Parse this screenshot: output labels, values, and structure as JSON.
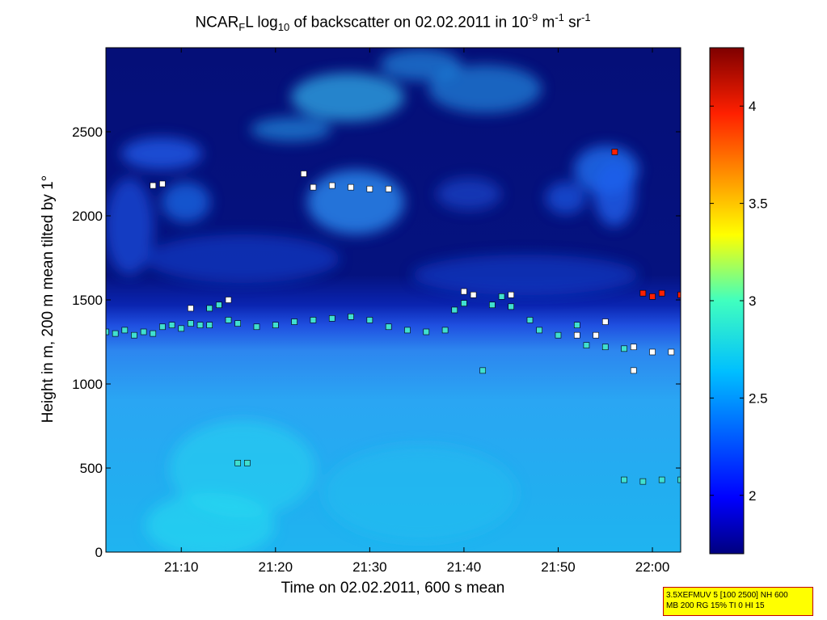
{
  "chart_data": {
    "type": "heatmap",
    "title": {
      "prefix": "NCAR",
      "sub1": "F",
      "mid1": "L log",
      "sub2": "10",
      "mid2": " of backscatter on 02.02.2011 in 10",
      "sup1": "-9",
      "mid3": " m",
      "sup2": "-1",
      "mid4": " sr",
      "sup3": "-1"
    },
    "xlabel": "Time on 02.02.2011, 600 s mean",
    "ylabel": "Height in m, 200 m mean tilted by 1°",
    "xlim": [
      "21:02",
      "22:03"
    ],
    "ylim": [
      0,
      3000
    ],
    "x_ticks": [
      "21:10",
      "21:20",
      "21:30",
      "21:40",
      "21:50",
      "22:00"
    ],
    "y_ticks": [
      0,
      500,
      1000,
      1500,
      2000,
      2500
    ],
    "colorbar": {
      "range": [
        1.7,
        4.3
      ],
      "ticks": [
        2,
        2.5,
        3,
        3.5,
        4
      ],
      "tick_labels": [
        "2",
        "2.5",
        "3",
        "3.5",
        "4"
      ],
      "colormap": "jet"
    },
    "boundary_layer_band_m": [
      0,
      1300
    ],
    "series": [
      {
        "marker": "cyan-square",
        "color": "#40e0d0",
        "points": [
          [
            "21:02",
            1310
          ],
          [
            "21:03",
            1300
          ],
          [
            "21:04",
            1320
          ],
          [
            "21:05",
            1290
          ],
          [
            "21:06",
            1310
          ],
          [
            "21:07",
            1300
          ],
          [
            "21:08",
            1340
          ],
          [
            "21:09",
            1350
          ],
          [
            "21:10",
            1330
          ],
          [
            "21:11",
            1360
          ],
          [
            "21:12",
            1350
          ],
          [
            "21:13",
            1350
          ],
          [
            "21:13",
            1450
          ],
          [
            "21:14",
            1470
          ],
          [
            "21:15",
            1380
          ],
          [
            "21:16",
            1360
          ],
          [
            "21:16",
            530
          ],
          [
            "21:17",
            530
          ],
          [
            "21:18",
            1340
          ],
          [
            "21:20",
            1350
          ],
          [
            "21:22",
            1370
          ],
          [
            "21:24",
            1380
          ],
          [
            "21:26",
            1390
          ],
          [
            "21:28",
            1400
          ],
          [
            "21:30",
            1380
          ],
          [
            "21:32",
            1340
          ],
          [
            "21:34",
            1320
          ],
          [
            "21:36",
            1310
          ],
          [
            "21:38",
            1320
          ],
          [
            "21:39",
            1440
          ],
          [
            "21:40",
            1480
          ],
          [
            "21:42",
            1080
          ],
          [
            "21:43",
            1470
          ],
          [
            "21:44",
            1520
          ],
          [
            "21:45",
            1460
          ],
          [
            "21:47",
            1380
          ],
          [
            "21:48",
            1320
          ],
          [
            "21:50",
            1290
          ],
          [
            "21:52",
            1350
          ],
          [
            "21:53",
            1230
          ],
          [
            "21:55",
            1220
          ],
          [
            "21:57",
            1210
          ],
          [
            "21:57",
            430
          ],
          [
            "21:59",
            420
          ],
          [
            "22:01",
            430
          ],
          [
            "22:03",
            430
          ]
        ]
      },
      {
        "marker": "white-square",
        "color": "#ffffff",
        "points": [
          [
            "21:07",
            2180
          ],
          [
            "21:08",
            2190
          ],
          [
            "21:11",
            1450
          ],
          [
            "21:15",
            1500
          ],
          [
            "21:23",
            2250
          ],
          [
            "21:24",
            2170
          ],
          [
            "21:26",
            2180
          ],
          [
            "21:28",
            2170
          ],
          [
            "21:30",
            2160
          ],
          [
            "21:32",
            2160
          ],
          [
            "21:40",
            1550
          ],
          [
            "21:41",
            1530
          ],
          [
            "21:45",
            1530
          ],
          [
            "21:52",
            1290
          ],
          [
            "21:54",
            1290
          ],
          [
            "21:55",
            1370
          ],
          [
            "21:58",
            1220
          ],
          [
            "21:58",
            1080
          ],
          [
            "22:00",
            1190
          ],
          [
            "22:02",
            1190
          ]
        ]
      },
      {
        "marker": "red-square",
        "color": "#ff2000",
        "points": [
          [
            "21:56",
            2380
          ],
          [
            "21:59",
            1540
          ],
          [
            "22:00",
            1520
          ],
          [
            "22:01",
            1540
          ],
          [
            "22:03",
            1530
          ]
        ]
      }
    ]
  },
  "info_box": {
    "line1": "3.5XEFMUV 5 [100 2500] NH 600",
    "line2": "MB 200 RG 15% TI 0 HI 15"
  }
}
